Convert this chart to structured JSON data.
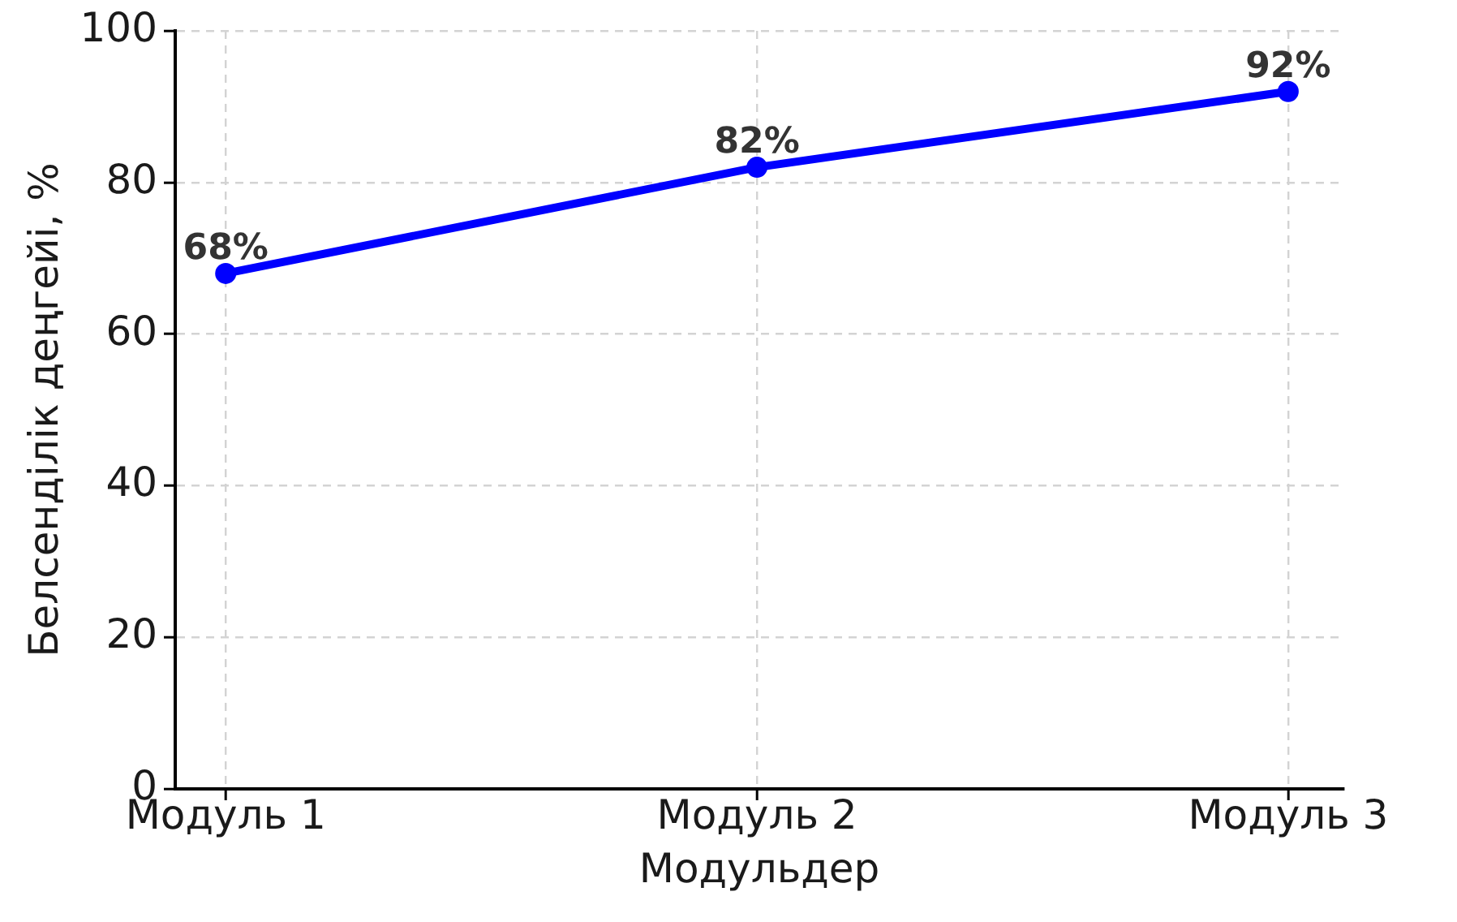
{
  "chart_data": {
    "type": "line",
    "xlabel": "Модульдер",
    "ylabel": "Белсенділік деңгейі, %",
    "categories": [
      "Модуль 1",
      "Модуль 2",
      "Модуль 3"
    ],
    "series": [
      {
        "color": "#0000ff",
        "values": [
          68,
          82,
          92
        ],
        "value_labels": [
          "68%",
          "82%",
          "92%"
        ]
      }
    ],
    "ylim": [
      0,
      100
    ],
    "yticks": [
      0,
      20,
      40,
      60,
      80,
      100
    ],
    "grid": true,
    "marker": "circle",
    "line_style": "solid"
  }
}
